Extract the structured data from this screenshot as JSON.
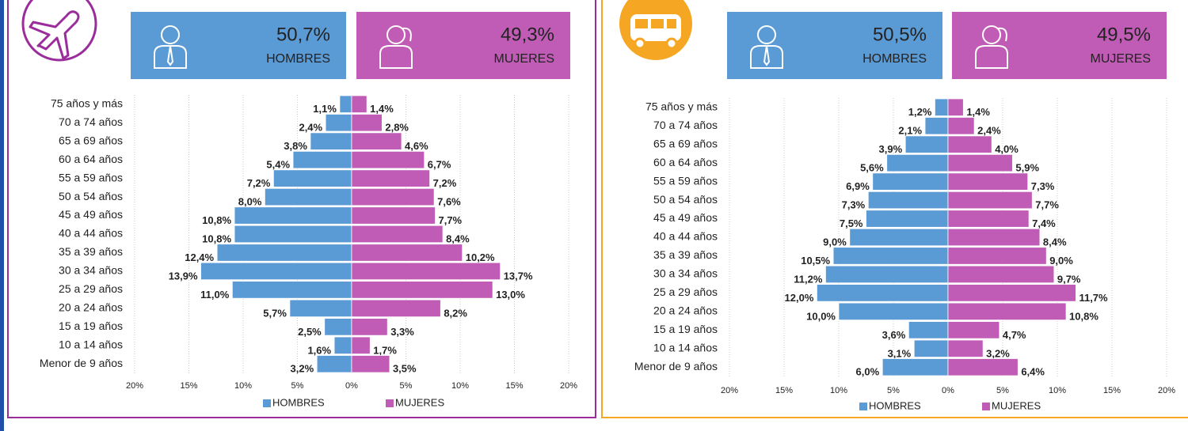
{
  "chart_data": [
    {
      "type": "pyramid",
      "cards": [
        {
          "value": "50,7%",
          "label": "HOMBRES"
        },
        {
          "value": "49,3%",
          "label": "MUJERES"
        }
      ],
      "categories": [
        "75 años y más",
        "70 a 74 años",
        "65 a 69 años",
        "60 a 64 años",
        "55 a 59 años",
        "50 a 54 años",
        "45 a 49 años",
        "40 a 44 años",
        "35 a 39 años",
        "30 a 34 años",
        "25 a 29 años",
        "20 a 24 años",
        "15 a 19 años",
        "10 a 14 años",
        "Menor de 9 años"
      ],
      "series": [
        {
          "name": "HOMBRES",
          "color": "#5b9bd5",
          "values": [
            -1.1,
            -2.4,
            -3.8,
            -5.4,
            -7.2,
            -8.0,
            -10.8,
            -10.8,
            -12.4,
            -13.9,
            -11.0,
            -5.7,
            -2.5,
            -1.6,
            -3.2
          ],
          "value_labels": [
            "1,1%",
            "2,4%",
            "3,8%",
            "5,4%",
            "7,2%",
            "8,0%",
            "10,8%",
            "10,8%",
            "12,4%",
            "13,9%",
            "11,0%",
            "5,7%",
            "2,5%",
            "1,6%",
            "3,2%"
          ]
        },
        {
          "name": "MUJERES",
          "color": "#c05cb5",
          "values": [
            1.4,
            2.8,
            4.6,
            6.7,
            7.2,
            7.6,
            7.7,
            8.4,
            10.2,
            13.7,
            13.0,
            8.2,
            3.3,
            1.7,
            3.5
          ],
          "value_labels": [
            "1,4%",
            "2,8%",
            "4,6%",
            "6,7%",
            "7,2%",
            "7,6%",
            "7,7%",
            "8,4%",
            "10,2%",
            "13,7%",
            "13,0%",
            "8,2%",
            "3,3%",
            "1,7%",
            "3,5%"
          ]
        }
      ],
      "xlim": [
        -20,
        20
      ],
      "xticks": [
        {
          "value": -20,
          "label": "20%"
        },
        {
          "value": -15,
          "label": "15%"
        },
        {
          "value": -10,
          "label": "10%"
        },
        {
          "value": -5,
          "label": "5%"
        },
        {
          "value": 0,
          "label": "0%"
        },
        {
          "value": 5,
          "label": "5%"
        },
        {
          "value": 10,
          "label": "10%"
        },
        {
          "value": 15,
          "label": "15%"
        },
        {
          "value": 20,
          "label": "20%"
        }
      ],
      "grid": true,
      "border_color": "#9b2d9b"
    },
    {
      "type": "pyramid",
      "cards": [
        {
          "value": "50,5%",
          "label": "HOMBRES"
        },
        {
          "value": "49,5%",
          "label": "MUJERES"
        }
      ],
      "categories": [
        "75 años y más",
        "70 a 74 años",
        "65 a 69 años",
        "60 a 64 años",
        "55 a 59 años",
        "50 a 54 años",
        "45 a 49 años",
        "40 a 44 años",
        "35 a 39 años",
        "30 a 34 años",
        "25 a 29 años",
        "20 a 24 años",
        "15 a 19 años",
        "10 a 14 años",
        "Menor de 9 años"
      ],
      "series": [
        {
          "name": "HOMBRES",
          "color": "#5b9bd5",
          "values": [
            -1.2,
            -2.1,
            -3.9,
            -5.6,
            -6.9,
            -7.3,
            -7.5,
            -9.0,
            -10.5,
            -11.2,
            -12.0,
            -10.0,
            -3.6,
            -3.1,
            -6.0
          ],
          "value_labels": [
            "1,2%",
            "2,1%",
            "3,9%",
            "5,6%",
            "6,9%",
            "7,3%",
            "7,5%",
            "9,0%",
            "10,5%",
            "11,2%",
            "12,0%",
            "10,0%",
            "3,6%",
            "3,1%",
            "6,0%"
          ]
        },
        {
          "name": "MUJERES",
          "color": "#c05cb5",
          "values": [
            1.4,
            2.4,
            4.0,
            5.9,
            7.3,
            7.7,
            7.4,
            8.4,
            9.0,
            9.7,
            11.7,
            10.8,
            4.7,
            3.2,
            6.4
          ],
          "value_labels": [
            "1,4%",
            "2,4%",
            "4,0%",
            "5,9%",
            "7,3%",
            "7,7%",
            "7,4%",
            "8,4%",
            "9,0%",
            "9,7%",
            "11,7%",
            "10,8%",
            "4,7%",
            "3,2%",
            "6,4%"
          ]
        }
      ],
      "xlim": [
        -20,
        20
      ],
      "xticks": [
        {
          "value": -20,
          "label": "20%"
        },
        {
          "value": -15,
          "label": "15%"
        },
        {
          "value": -10,
          "label": "10%"
        },
        {
          "value": -5,
          "label": "5%"
        },
        {
          "value": 0,
          "label": "0%"
        },
        {
          "value": 5,
          "label": "5%"
        },
        {
          "value": 10,
          "label": "10%"
        },
        {
          "value": 15,
          "label": "15%"
        },
        {
          "value": 20,
          "label": "20%"
        }
      ],
      "grid": true,
      "border_color": "#f5a623"
    }
  ]
}
